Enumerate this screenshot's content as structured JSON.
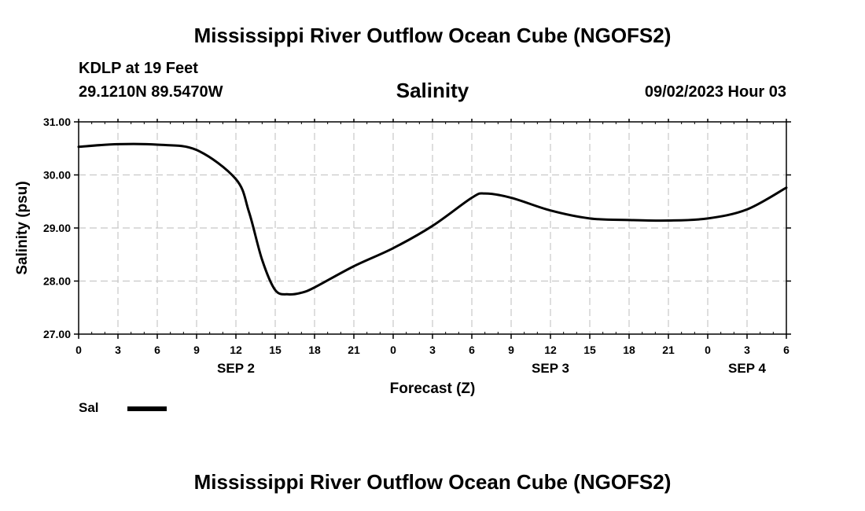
{
  "header": {
    "title": "Mississippi River Outflow Ocean Cube (NGOFS2)",
    "station": "KDLP at 19 Feet",
    "coordinates": "29.1210N  89.5470W",
    "chart_title": "Salinity",
    "run_time": "09/02/2023 Hour 03"
  },
  "footer": {
    "title": "Mississippi River Outflow Ocean Cube (NGOFS2)"
  },
  "legend": {
    "label": "Sal",
    "line_color": "#000000"
  },
  "chart_data": {
    "type": "line",
    "title": "Salinity",
    "xlabel": "Forecast (Z)",
    "ylabel": "Salinity (psu)",
    "ylim": [
      27.0,
      31.0
    ],
    "yticks": [
      "27.00",
      "28.00",
      "29.00",
      "30.00",
      "31.00"
    ],
    "xlim": [
      "2023-09-02 00Z",
      "2023-09-04 06Z"
    ],
    "xtick_labels": [
      "0",
      "3",
      "6",
      "9",
      "12",
      "15",
      "18",
      "21",
      "0",
      "3",
      "6",
      "9",
      "12",
      "15",
      "18",
      "21",
      "0",
      "3",
      "6"
    ],
    "date_labels": [
      {
        "hour": 12,
        "label": "SEP 2"
      },
      {
        "hour": 36,
        "label": "SEP 3"
      },
      {
        "hour": 51,
        "label": "SEP 4"
      }
    ],
    "grid": true,
    "legend_position": "bottom-left",
    "series": [
      {
        "name": "Sal",
        "color": "#000000",
        "x": [
          "2023-09-02 00Z",
          "2023-09-02 03Z",
          "2023-09-02 06Z",
          "2023-09-02 09Z",
          "2023-09-02 12Z",
          "2023-09-02 13Z",
          "2023-09-02 14Z",
          "2023-09-02 15Z",
          "2023-09-02 16Z",
          "2023-09-02 17Z",
          "2023-09-02 18Z",
          "2023-09-02 21Z",
          "2023-09-03 00Z",
          "2023-09-03 03Z",
          "2023-09-03 06Z",
          "2023-09-03 07Z",
          "2023-09-03 09Z",
          "2023-09-03 12Z",
          "2023-09-03 15Z",
          "2023-09-03 18Z",
          "2023-09-03 21Z",
          "2023-09-04 00Z",
          "2023-09-04 03Z",
          "2023-09-04 06Z"
        ],
        "values": [
          30.53,
          30.58,
          30.57,
          30.47,
          29.92,
          29.3,
          28.4,
          27.83,
          27.75,
          27.78,
          27.88,
          28.28,
          28.62,
          29.04,
          29.57,
          29.65,
          29.57,
          29.33,
          29.18,
          29.15,
          29.14,
          29.18,
          29.35,
          29.76
        ]
      }
    ]
  }
}
